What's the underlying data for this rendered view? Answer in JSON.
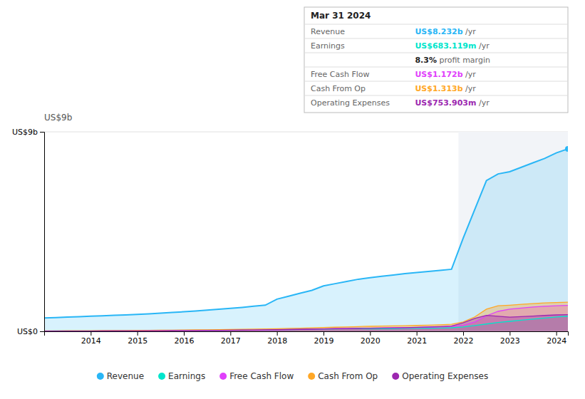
{
  "chart_data": {
    "type": "area",
    "annotation": "US$9b",
    "x": [
      2013,
      2013.25,
      2013.5,
      2013.75,
      2014,
      2014.25,
      2014.5,
      2014.75,
      2015,
      2015.25,
      2015.5,
      2015.75,
      2016,
      2016.25,
      2016.5,
      2016.75,
      2017,
      2017.25,
      2017.5,
      2017.75,
      2018,
      2018.25,
      2018.5,
      2018.75,
      2019,
      2019.25,
      2019.5,
      2019.75,
      2020,
      2020.25,
      2020.5,
      2020.75,
      2021,
      2021.25,
      2021.5,
      2021.75,
      2022,
      2022.25,
      2022.5,
      2022.75,
      2023,
      2023.25,
      2023.5,
      2023.75,
      2024,
      2024.25
    ],
    "series": [
      {
        "name": "Revenue",
        "color": "#29b6f6",
        "values": [
          0.6,
          0.62,
          0.64,
          0.66,
          0.68,
          0.7,
          0.72,
          0.74,
          0.76,
          0.79,
          0.82,
          0.85,
          0.88,
          0.92,
          0.96,
          1.0,
          1.04,
          1.08,
          1.13,
          1.18,
          1.45,
          1.58,
          1.72,
          1.85,
          2.05,
          2.15,
          2.25,
          2.35,
          2.42,
          2.48,
          2.54,
          2.6,
          2.65,
          2.7,
          2.75,
          2.8,
          4.2,
          5.5,
          6.8,
          7.1,
          7.2,
          7.4,
          7.6,
          7.8,
          8.05,
          8.232
        ]
      },
      {
        "name": "Earnings",
        "color": "#00e5cc",
        "values": [
          0.015,
          0.016,
          0.017,
          0.018,
          0.02,
          0.022,
          0.024,
          0.026,
          0.028,
          0.03,
          0.032,
          0.034,
          0.036,
          0.04,
          0.044,
          0.048,
          0.052,
          0.056,
          0.06,
          0.065,
          0.075,
          0.08,
          0.088,
          0.096,
          0.105,
          0.112,
          0.118,
          0.122,
          0.11,
          0.115,
          0.12,
          0.13,
          0.135,
          0.14,
          0.15,
          0.16,
          0.2,
          0.26,
          0.33,
          0.4,
          0.45,
          0.5,
          0.55,
          0.6,
          0.65,
          0.683
        ]
      },
      {
        "name": "Free Cash Flow",
        "color": "#e040fb",
        "values": [
          0.008,
          0.009,
          0.01,
          0.011,
          0.012,
          0.014,
          0.016,
          0.018,
          0.02,
          0.022,
          0.024,
          0.026,
          0.028,
          0.032,
          0.036,
          0.04,
          0.044,
          0.05,
          0.056,
          0.062,
          0.07,
          0.08,
          0.09,
          0.1,
          0.11,
          0.12,
          0.13,
          0.14,
          0.14,
          0.148,
          0.156,
          0.165,
          0.175,
          0.185,
          0.2,
          0.22,
          0.28,
          0.42,
          0.7,
          0.9,
          1.0,
          1.05,
          1.1,
          1.13,
          1.15,
          1.172
        ]
      },
      {
        "name": "Cash From Op",
        "color": "#ffa726",
        "values": [
          0.02,
          0.022,
          0.025,
          0.027,
          0.03,
          0.033,
          0.036,
          0.039,
          0.042,
          0.046,
          0.05,
          0.054,
          0.058,
          0.064,
          0.07,
          0.076,
          0.082,
          0.09,
          0.098,
          0.107,
          0.118,
          0.13,
          0.142,
          0.155,
          0.17,
          0.185,
          0.2,
          0.215,
          0.225,
          0.235,
          0.245,
          0.255,
          0.265,
          0.278,
          0.295,
          0.32,
          0.42,
          0.65,
          1.0,
          1.15,
          1.18,
          1.22,
          1.25,
          1.28,
          1.3,
          1.313
        ]
      },
      {
        "name": "Operating Expenses",
        "color": "#9c27b0",
        "values": [
          0.01,
          0.011,
          0.012,
          0.013,
          0.015,
          0.017,
          0.019,
          0.021,
          0.023,
          0.026,
          0.029,
          0.032,
          0.035,
          0.039,
          0.043,
          0.047,
          0.051,
          0.056,
          0.061,
          0.067,
          0.072,
          0.08,
          0.088,
          0.097,
          0.107,
          0.117,
          0.127,
          0.137,
          0.142,
          0.15,
          0.158,
          0.167,
          0.18,
          0.196,
          0.215,
          0.24,
          0.38,
          0.58,
          0.72,
          0.68,
          0.64,
          0.66,
          0.69,
          0.715,
          0.74,
          0.754
        ]
      }
    ],
    "xlim": [
      2013,
      2024.25
    ],
    "xticks": [
      2014,
      2015,
      2016,
      2017,
      2018,
      2019,
      2020,
      2021,
      2022,
      2023,
      2024
    ],
    "ylim": [
      0,
      9
    ],
    "yticks": [
      {
        "value": 0,
        "label": "US$0"
      },
      {
        "value": 9,
        "label": "US$9b"
      }
    ],
    "grid": true,
    "legend": "bottom",
    "highlight_range": [
      2021.9,
      2024.25
    ],
    "tooltip": {
      "title": "Mar 31 2024",
      "rows": [
        {
          "label": "Revenue",
          "value": "US$8.232b",
          "unit": " /yr",
          "color": "#29b6f6"
        },
        {
          "label": "Earnings",
          "value": "US$683.119m",
          "unit": " /yr",
          "color": "#00e5cc"
        },
        {
          "value": "8.3%",
          "unit": " profit margin"
        },
        {
          "label": "Free Cash Flow",
          "value": "US$1.172b",
          "unit": " /yr",
          "color": "#e040fb"
        },
        {
          "label": "Cash From Op",
          "value": "US$1.313b",
          "unit": " /yr",
          "color": "#ffa726"
        },
        {
          "label": "Operating Expenses",
          "value": "US$753.903m",
          "unit": " /yr",
          "color": "#9c27b0"
        }
      ]
    }
  }
}
